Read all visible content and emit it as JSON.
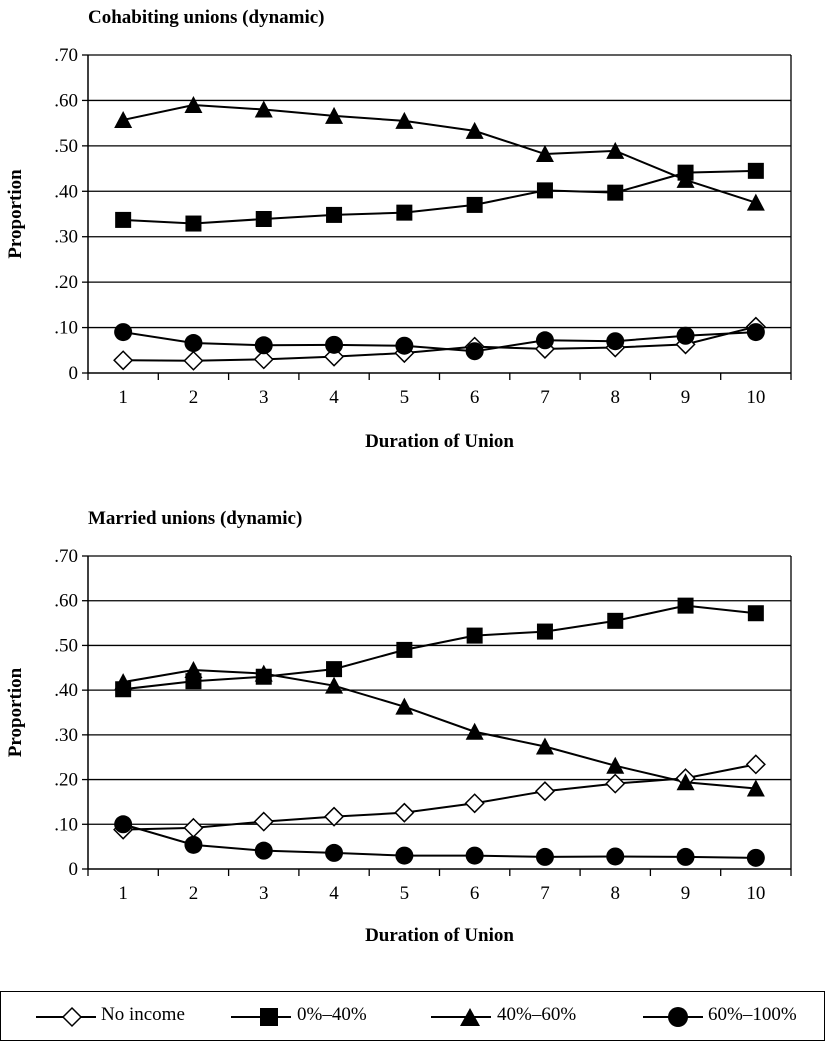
{
  "chart_data": [
    {
      "type": "line",
      "title": "Cohabiting unions (dynamic)",
      "xlabel": "Duration of Union",
      "ylabel": "Proportion",
      "categories": [
        "1",
        "2",
        "3",
        "4",
        "5",
        "6",
        "7",
        "8",
        "9",
        "10"
      ],
      "ylim": [
        0,
        0.7
      ],
      "yticks": [
        0,
        0.1,
        0.2,
        0.3,
        0.4,
        0.5,
        0.6,
        0.7
      ],
      "ytick_labels": [
        "0",
        ".10",
        ".20",
        ".30",
        ".40",
        ".50",
        ".60",
        ".70"
      ],
      "grid": true,
      "series": [
        {
          "name": "No income",
          "marker": "diamond",
          "values": [
            0.028,
            0.027,
            0.03,
            0.036,
            0.044,
            0.058,
            0.053,
            0.056,
            0.063,
            0.102
          ]
        },
        {
          "name": "0%–40%",
          "marker": "square",
          "values": [
            0.337,
            0.329,
            0.339,
            0.348,
            0.353,
            0.37,
            0.402,
            0.397,
            0.441,
            0.445
          ]
        },
        {
          "name": "40%–60%",
          "marker": "triangle",
          "values": [
            0.557,
            0.59,
            0.58,
            0.566,
            0.555,
            0.533,
            0.482,
            0.489,
            0.425,
            0.375
          ]
        },
        {
          "name": "60%–100%",
          "marker": "circle",
          "values": [
            0.09,
            0.066,
            0.061,
            0.062,
            0.06,
            0.048,
            0.072,
            0.07,
            0.082,
            0.09
          ]
        }
      ]
    },
    {
      "type": "line",
      "title": "Married unions (dynamic)",
      "xlabel": "Duration of Union",
      "ylabel": "Proportion",
      "categories": [
        "1",
        "2",
        "3",
        "4",
        "5",
        "6",
        "7",
        "8",
        "9",
        "10"
      ],
      "ylim": [
        0,
        0.7
      ],
      "yticks": [
        0,
        0.1,
        0.2,
        0.3,
        0.4,
        0.5,
        0.6,
        0.7
      ],
      "ytick_labels": [
        "0",
        ".10",
        ".20",
        ".30",
        ".40",
        ".50",
        ".60",
        ".70"
      ],
      "grid": true,
      "series": [
        {
          "name": "No income",
          "marker": "diamond",
          "values": [
            0.088,
            0.092,
            0.106,
            0.117,
            0.126,
            0.147,
            0.174,
            0.191,
            0.203,
            0.234
          ]
        },
        {
          "name": "0%–40%",
          "marker": "square",
          "values": [
            0.402,
            0.42,
            0.43,
            0.447,
            0.49,
            0.522,
            0.531,
            0.555,
            0.589,
            0.572
          ]
        },
        {
          "name": "40%–60%",
          "marker": "triangle",
          "values": [
            0.418,
            0.445,
            0.437,
            0.41,
            0.363,
            0.307,
            0.274,
            0.231,
            0.194,
            0.18
          ]
        },
        {
          "name": "60%–100%",
          "marker": "circle",
          "values": [
            0.1,
            0.054,
            0.041,
            0.036,
            0.03,
            0.03,
            0.027,
            0.028,
            0.027,
            0.025
          ]
        }
      ]
    }
  ],
  "legend": {
    "position": "bottom",
    "items": [
      {
        "label": "No income",
        "marker": "diamond"
      },
      {
        "label": "0%–40%",
        "marker": "square"
      },
      {
        "label": "40%–60%",
        "marker": "triangle"
      },
      {
        "label": "60%–100%",
        "marker": "circle"
      }
    ]
  }
}
